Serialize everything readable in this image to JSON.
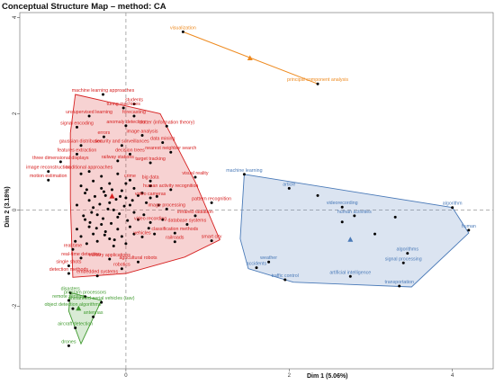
{
  "chart_data": {
    "type": "scatter",
    "title": "Conceptual Structure Map – method: CA",
    "xlabel": "Dim 1 (5.06%)",
    "ylabel": "Dim 2 (3.18%)",
    "xlim": [
      -1.3,
      4.5
    ],
    "ylim": [
      -3.3,
      4.1
    ],
    "xticks": [
      0,
      2,
      4
    ],
    "yticks": [
      -2,
      0,
      2,
      4
    ],
    "reference_lines": {
      "x": 0,
      "y": 0,
      "style": "dashed"
    },
    "clusters": [
      {
        "color": "#d62020",
        "hull": [
          [
            -0.62,
            2.4
          ],
          [
            0.42,
            2.0
          ],
          [
            0.85,
            0.58
          ],
          [
            1.15,
            -0.62
          ],
          [
            0.72,
            -0.98
          ],
          [
            0.0,
            -1.32
          ],
          [
            -0.65,
            -1.4
          ],
          [
            -0.68,
            0.2
          ],
          [
            -0.68,
            1.6
          ]
        ],
        "centroid": [
          -0.17,
          0.28
        ],
        "labeled_points": [
          {
            "label": "machine learning approaches",
            "x": -0.28,
            "y": 2.4
          },
          {
            "label": "turing machines",
            "x": -0.03,
            "y": 2.12
          },
          {
            "label": "students",
            "x": 0.1,
            "y": 2.2
          },
          {
            "label": "unsupervised learning",
            "x": -0.45,
            "y": 1.95
          },
          {
            "label": "forecasting",
            "x": 0.1,
            "y": 1.95
          },
          {
            "label": "signal encoding",
            "x": -0.6,
            "y": 1.72
          },
          {
            "label": "anomaly detection",
            "x": 0.0,
            "y": 1.75
          },
          {
            "label": "clutter (information theory)",
            "x": 0.5,
            "y": 1.74
          },
          {
            "label": "errors",
            "x": -0.27,
            "y": 1.52
          },
          {
            "label": "image analysis",
            "x": 0.2,
            "y": 1.55
          },
          {
            "label": "gaussian distribution",
            "x": -0.55,
            "y": 1.34
          },
          {
            "label": "security and surveillances",
            "x": -0.05,
            "y": 1.34
          },
          {
            "label": "data mining",
            "x": 0.45,
            "y": 1.4
          },
          {
            "label": "features extraction",
            "x": -0.6,
            "y": 1.16
          },
          {
            "label": "decision trees",
            "x": 0.05,
            "y": 1.16
          },
          {
            "label": "nearest neighbor search",
            "x": 0.55,
            "y": 1.2
          },
          {
            "label": "three dimensional displays",
            "x": -0.8,
            "y": 1.0
          },
          {
            "label": "railway stations",
            "x": -0.1,
            "y": 1.02
          },
          {
            "label": "target tracking",
            "x": 0.3,
            "y": 0.98
          },
          {
            "label": "image reconstruction",
            "x": -0.95,
            "y": 0.8
          },
          {
            "label": "traditional approaches",
            "x": -0.45,
            "y": 0.8
          },
          {
            "label": "motion estimation",
            "x": -0.95,
            "y": 0.62
          },
          {
            "label": "crime",
            "x": 0.05,
            "y": 0.62
          },
          {
            "label": "big data",
            "x": 0.3,
            "y": 0.6
          },
          {
            "label": "visual reality",
            "x": 0.85,
            "y": 0.68
          },
          {
            "label": "human activity recognition",
            "x": 0.55,
            "y": 0.42
          },
          {
            "label": "video cameras",
            "x": 0.3,
            "y": 0.25
          },
          {
            "label": "pattern recognition",
            "x": 1.05,
            "y": 0.15
          },
          {
            "label": "image processing",
            "x": 0.5,
            "y": 0.02
          },
          {
            "label": "infrared radiation",
            "x": 0.85,
            "y": -0.12
          },
          {
            "label": "database systems",
            "x": 0.75,
            "y": -0.3
          },
          {
            "label": "video recording",
            "x": 0.3,
            "y": -0.26
          },
          {
            "label": "classification methods",
            "x": 0.6,
            "y": -0.48
          },
          {
            "label": "vehicles",
            "x": 0.2,
            "y": -0.56
          },
          {
            "label": "railroads",
            "x": 0.6,
            "y": -0.66
          },
          {
            "label": "smart city",
            "x": 1.05,
            "y": -0.64
          },
          {
            "label": "real time",
            "x": -0.65,
            "y": -0.82
          },
          {
            "label": "real-time detection",
            "x": -0.55,
            "y": -1.0
          },
          {
            "label": "military applications",
            "x": -0.2,
            "y": -1.02
          },
          {
            "label": "agricultural robots",
            "x": 0.15,
            "y": -1.08
          },
          {
            "label": "single shots",
            "x": -0.7,
            "y": -1.16
          },
          {
            "label": "robotics",
            "x": -0.05,
            "y": -1.22
          },
          {
            "label": "detection methods",
            "x": -0.7,
            "y": -1.32
          },
          {
            "label": "embedded systems",
            "x": -0.35,
            "y": -1.37
          }
        ]
      },
      {
        "color": "#4a7ab8",
        "hull": [
          [
            1.45,
            0.74
          ],
          [
            4.0,
            0.05
          ],
          [
            4.2,
            -0.48
          ],
          [
            3.5,
            -1.6
          ],
          [
            2.05,
            -1.5
          ],
          [
            1.5,
            -1.22
          ],
          [
            1.4,
            -0.6
          ]
        ],
        "centroid": [
          2.75,
          -0.62
        ],
        "labeled_points": [
          {
            "label": "machine learning",
            "x": 1.45,
            "y": 0.74
          },
          {
            "label": "article",
            "x": 2.0,
            "y": 0.45
          },
          {
            "label": "videorecording",
            "x": 2.65,
            "y": 0.06
          },
          {
            "label": "human activities",
            "x": 2.8,
            "y": -0.12
          },
          {
            "label": "algorithm",
            "x": 4.0,
            "y": 0.05
          },
          {
            "label": "human",
            "x": 4.2,
            "y": -0.42
          },
          {
            "label": "algorithms",
            "x": 3.45,
            "y": -0.9
          },
          {
            "label": "signal processing",
            "x": 3.4,
            "y": -1.1
          },
          {
            "label": "weather",
            "x": 1.75,
            "y": -1.08
          },
          {
            "label": "accidents",
            "x": 1.6,
            "y": -1.2
          },
          {
            "label": "artificial intelligence",
            "x": 2.75,
            "y": -1.38
          },
          {
            "label": "traffic control",
            "x": 1.95,
            "y": -1.45
          },
          {
            "label": "transportation",
            "x": 3.35,
            "y": -1.58
          }
        ]
      },
      {
        "color": "#3f9a2e",
        "hull": [
          [
            -0.68,
            -1.72
          ],
          [
            -0.3,
            -1.88
          ],
          [
            -0.55,
            -2.78
          ],
          [
            -0.7,
            -2.1
          ]
        ],
        "centroid": [
          -0.58,
          -2.05
        ],
        "labeled_points": [
          {
            "label": "disasters",
            "x": -0.68,
            "y": -1.72
          },
          {
            "label": "program processors",
            "x": -0.5,
            "y": -1.8
          },
          {
            "label": "remote sensing",
            "x": -0.7,
            "y": -1.88
          },
          {
            "label": "unmanned aerial vehicles (uav)",
            "x": -0.3,
            "y": -1.92
          },
          {
            "label": "object detection algorithms",
            "x": -0.65,
            "y": -2.05
          },
          {
            "label": "antennas",
            "x": -0.4,
            "y": -2.22
          },
          {
            "label": "aircraft detection",
            "x": -0.62,
            "y": -2.45
          },
          {
            "label": "drones",
            "x": -0.7,
            "y": -2.82
          }
        ]
      },
      {
        "color": "#ee8a1f",
        "hull": [
          [
            0.7,
            3.7
          ],
          [
            2.35,
            2.62
          ]
        ],
        "centroid": [
          1.52,
          3.15
        ],
        "labeled_points": [
          {
            "label": "visualization",
            "x": 0.7,
            "y": 3.7
          },
          {
            "label": "principal component analysis",
            "x": 2.35,
            "y": 2.62
          }
        ]
      }
    ],
    "unlabeled_points": [
      [
        -0.55,
        0.5
      ],
      [
        -0.5,
        0.35
      ],
      [
        -0.45,
        0.2
      ],
      [
        -0.4,
        0.05
      ],
      [
        -0.35,
        -0.1
      ],
      [
        -0.3,
        0.45
      ],
      [
        -0.25,
        0.3
      ],
      [
        -0.2,
        0.15
      ],
      [
        -0.15,
        0.0
      ],
      [
        -0.1,
        -0.15
      ],
      [
        -0.05,
        0.4
      ],
      [
        0.0,
        0.25
      ],
      [
        0.05,
        0.1
      ],
      [
        0.1,
        -0.05
      ],
      [
        0.15,
        -0.2
      ],
      [
        -0.5,
        -0.2
      ],
      [
        -0.45,
        -0.35
      ],
      [
        -0.4,
        -0.5
      ],
      [
        -0.35,
        -0.65
      ],
      [
        -0.3,
        -0.3
      ],
      [
        -0.25,
        -0.45
      ],
      [
        -0.2,
        -0.6
      ],
      [
        -0.15,
        -0.75
      ],
      [
        -0.1,
        -0.4
      ],
      [
        -0.05,
        -0.55
      ],
      [
        0.0,
        -0.7
      ],
      [
        0.05,
        -0.35
      ],
      [
        0.1,
        -0.5
      ],
      [
        0.2,
        0.35
      ],
      [
        0.25,
        0.15
      ],
      [
        -0.6,
        0.1
      ],
      [
        -0.6,
        -0.4
      ],
      [
        -0.55,
        0.75
      ],
      [
        -0.4,
        0.6
      ],
      [
        -0.3,
        0.7
      ],
      [
        -0.2,
        0.55
      ],
      [
        -0.1,
        0.75
      ],
      [
        0.0,
        0.55
      ],
      [
        0.1,
        0.45
      ],
      [
        0.15,
        0.3
      ],
      [
        -0.32,
        0.12
      ],
      [
        -0.22,
        0.02
      ],
      [
        -0.12,
        0.22
      ],
      [
        -0.02,
        0.08
      ],
      [
        0.08,
        0.2
      ],
      [
        -0.42,
        -0.05
      ],
      [
        -0.28,
        -0.18
      ],
      [
        -0.18,
        -0.28
      ],
      [
        -0.08,
        -0.08
      ],
      [
        0.02,
        -0.22
      ],
      [
        -0.48,
        0.42
      ],
      [
        -0.38,
        0.28
      ],
      [
        -0.27,
        0.38
      ],
      [
        -0.17,
        0.42
      ],
      [
        -0.07,
        0.28
      ],
      [
        -0.52,
        -0.12
      ],
      [
        -0.44,
        -0.26
      ],
      [
        -0.36,
        -0.38
      ],
      [
        -0.26,
        -0.52
      ],
      [
        -0.14,
        -0.62
      ],
      [
        0.22,
        -0.1
      ],
      [
        0.28,
        -0.38
      ],
      [
        0.35,
        -0.5
      ],
      [
        0.4,
        0.1
      ],
      [
        0.45,
        -0.2
      ],
      [
        0.38,
        0.28
      ],
      [
        -0.62,
        -0.65
      ],
      [
        -0.55,
        -0.55
      ],
      [
        -0.48,
        -0.7
      ],
      [
        0.3,
        0.5
      ]
    ],
    "blue_extra_points": [
      [
        2.35,
        0.3
      ],
      [
        3.3,
        -0.15
      ],
      [
        2.65,
        -0.25
      ],
      [
        3.05,
        -0.5
      ]
    ]
  }
}
